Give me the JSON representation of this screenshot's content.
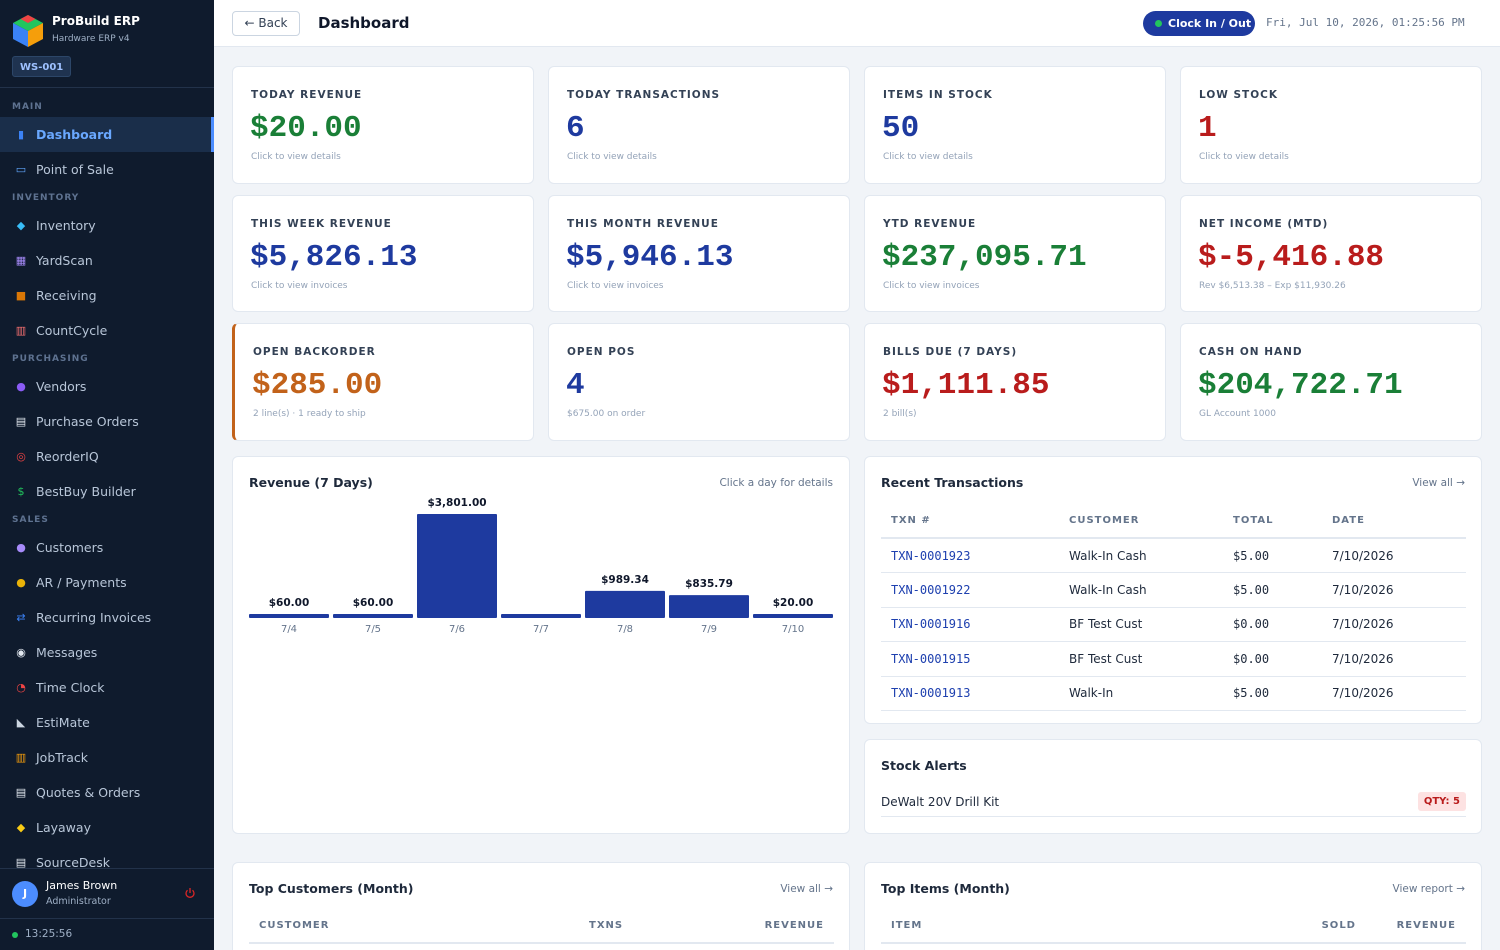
{
  "app": {
    "name": "ProBuild ERP",
    "subtitle": "Hardware ERP v4",
    "workstation": "WS-001"
  },
  "sidebar": {
    "sections": [
      {
        "label": "MAIN",
        "items": [
          {
            "label": "Dashboard",
            "icon": "bar-chart-icon",
            "active": true
          },
          {
            "label": "Point of Sale",
            "icon": "monitor-icon"
          }
        ]
      },
      {
        "label": "INVENTORY",
        "items": [
          {
            "label": "Inventory",
            "icon": "gem-icon"
          },
          {
            "label": "YardScan",
            "icon": "calculator-icon"
          },
          {
            "label": "Receiving",
            "icon": "package-icon"
          },
          {
            "label": "CountCycle",
            "icon": "abacus-icon"
          }
        ]
      },
      {
        "label": "PURCHASING",
        "items": [
          {
            "label": "Vendors",
            "icon": "person-icon"
          },
          {
            "label": "Purchase Orders",
            "icon": "clipboard-icon"
          },
          {
            "label": "ReorderIQ",
            "icon": "target-icon"
          },
          {
            "label": "BestBuy Builder",
            "icon": "dollar-icon"
          }
        ]
      },
      {
        "label": "SALES",
        "items": [
          {
            "label": "Customers",
            "icon": "people-icon"
          },
          {
            "label": "AR / Payments",
            "icon": "money-bag-icon"
          },
          {
            "label": "Recurring Invoices",
            "icon": "repeat-icon"
          },
          {
            "label": "Messages",
            "icon": "speech-bubble-icon"
          },
          {
            "label": "Time Clock",
            "icon": "alarm-clock-icon"
          },
          {
            "label": "EstiMate",
            "icon": "triangle-ruler-icon"
          },
          {
            "label": "JobTrack",
            "icon": "construction-icon"
          },
          {
            "label": "Quotes & Orders",
            "icon": "document-icon"
          },
          {
            "label": "Layaway",
            "icon": "tag-icon"
          },
          {
            "label": "SourceDesk",
            "icon": "document-icon"
          }
        ]
      }
    ],
    "user": {
      "initial": "J",
      "name": "James Brown",
      "role": "Administrator"
    },
    "clock": "13:25:56"
  },
  "topbar": {
    "back": "← Back",
    "title": "Dashboard",
    "clock_button": "Clock In / Out",
    "datetime": "Fri, Jul 10, 2026, 01:25:56 PM"
  },
  "stats": [
    {
      "label": "TODAY REVENUE",
      "value": "$20.00",
      "sub": "Click to view details",
      "color": "#1a7f37"
    },
    {
      "label": "TODAY TRANSACTIONS",
      "value": "6",
      "sub": "Click to view details",
      "color": "#1e3a9f"
    },
    {
      "label": "ITEMS IN STOCK",
      "value": "50",
      "sub": "Click to view details",
      "color": "#1e3a9f"
    },
    {
      "label": "LOW STOCK",
      "value": "1",
      "sub": "Click to view details",
      "color": "#b91c1c"
    },
    {
      "label": "THIS WEEK REVENUE",
      "value": "$5,826.13",
      "sub": "Click to view invoices",
      "color": "#1e3a9f"
    },
    {
      "label": "THIS MONTH REVENUE",
      "value": "$5,946.13",
      "sub": "Click to view invoices",
      "color": "#1e3a9f"
    },
    {
      "label": "YTD REVENUE",
      "value": "$237,095.71",
      "sub": "Click to view invoices",
      "color": "#1a7f37"
    },
    {
      "label": "NET INCOME (MTD)",
      "value": "$-5,416.88",
      "sub": "Rev $6,513.38 – Exp $11,930.26",
      "color": "#b91c1c"
    },
    {
      "label": "OPEN BACKORDER",
      "value": "$285.00",
      "sub": "2 line(s) · 1 ready to ship",
      "color": "#c2621a",
      "accent": true
    },
    {
      "label": "OPEN POS",
      "value": "4",
      "sub": "$675.00 on order",
      "color": "#1e3a9f"
    },
    {
      "label": "BILLS DUE (7 DAYS)",
      "value": "$1,111.85",
      "sub": "2 bill(s)",
      "color": "#b91c1c"
    },
    {
      "label": "CASH ON HAND",
      "value": "$204,722.71",
      "sub": "GL Account 1000",
      "color": "#1a7f37"
    }
  ],
  "revenue_panel": {
    "title": "Revenue (7 Days)",
    "link": "Click a day for details"
  },
  "chart_data": {
    "type": "bar",
    "title": "Revenue (7 Days)",
    "categories": [
      "7/4",
      "7/5",
      "7/6",
      "7/7",
      "7/8",
      "7/9",
      "7/10"
    ],
    "values": [
      60.0,
      60.0,
      3801.0,
      0,
      989.34,
      835.79,
      20.0
    ],
    "value_labels": [
      "$60.00",
      "$60.00",
      "$3,801.00",
      "",
      "$989.34",
      "$835.79",
      "$20.00"
    ],
    "bar_color": "#1e3a9f",
    "xlabel": "",
    "ylabel": "",
    "ylim": [
      0,
      3801
    ],
    "grid": false
  },
  "recent_transactions": {
    "title": "Recent Transactions",
    "link": "View all →",
    "columns": [
      "TXN #",
      "CUSTOMER",
      "TOTAL",
      "DATE"
    ],
    "rows": [
      [
        "TXN-0001923",
        "Walk-In Cash",
        "$5.00",
        "7/10/2026"
      ],
      [
        "TXN-0001922",
        "Walk-In Cash",
        "$5.00",
        "7/10/2026"
      ],
      [
        "TXN-0001916",
        "BF Test Cust",
        "$0.00",
        "7/10/2026"
      ],
      [
        "TXN-0001915",
        "BF Test Cust",
        "$0.00",
        "7/10/2026"
      ],
      [
        "TXN-0001913",
        "Walk-In",
        "$5.00",
        "7/10/2026"
      ]
    ]
  },
  "stock_alerts": {
    "title": "Stock Alerts",
    "items": [
      {
        "name": "DeWalt 20V Drill Kit",
        "qty": "QTY: 5"
      }
    ]
  },
  "top_customers": {
    "title": "Top Customers (Month)",
    "link": "View all →",
    "columns": [
      "CUSTOMER",
      "TXNS",
      "REVENUE"
    ]
  },
  "top_items": {
    "title": "Top Items (Month)",
    "link": "View report →",
    "columns": [
      "ITEM",
      "SOLD",
      "REVENUE"
    ]
  }
}
